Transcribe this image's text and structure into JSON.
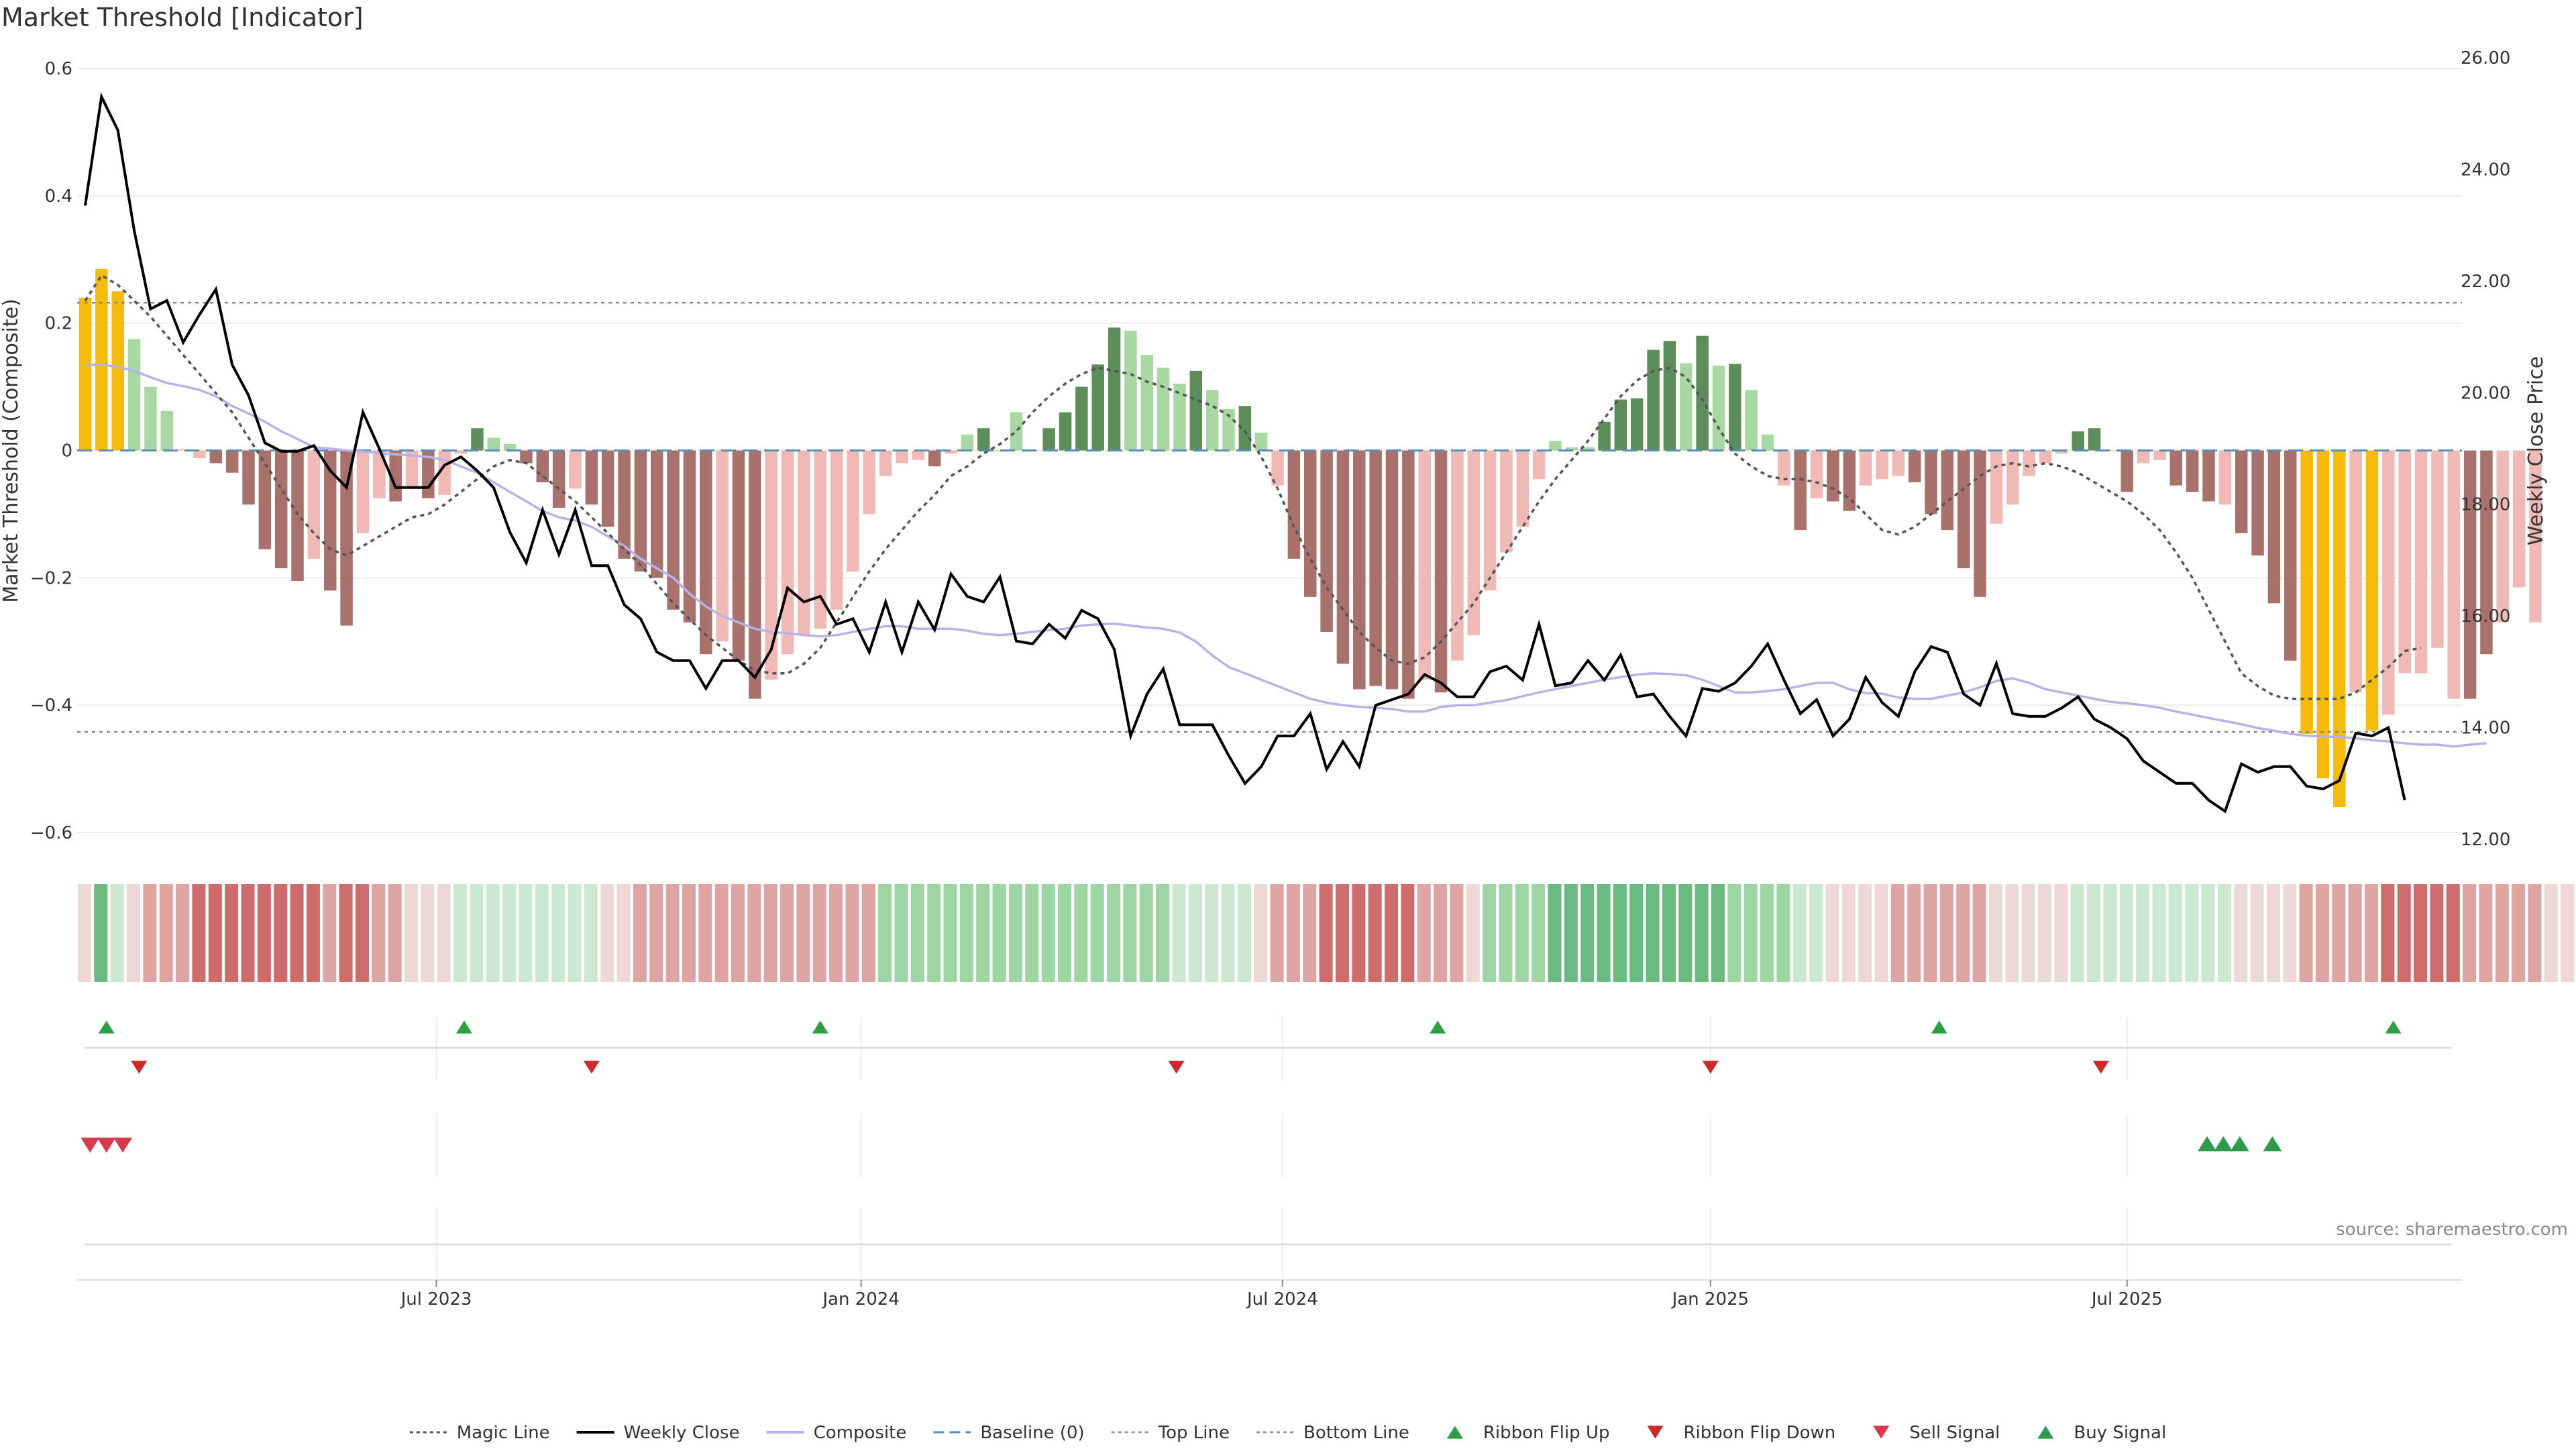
{
  "title": "Market Threshold [Indicator]",
  "source": "source: sharemaestro.com",
  "chart_data": {
    "type": "bar+line",
    "title": "Market Threshold [Indicator]",
    "y_left_label": "Market Threshold (Composite)",
    "y_right_label": "Weekly Close Price",
    "y_left_ticks": [
      "0.6",
      "0.4",
      "0.2",
      "0",
      "−0.2",
      "−0.4",
      "−0.6"
    ],
    "y_left_range": [
      -0.6,
      0.6
    ],
    "y_right_ticks": [
      "26.00",
      "24.00",
      "22.00",
      "20.00",
      "18.00",
      "16.00",
      "14.00",
      "12.00"
    ],
    "y_right_range": [
      12,
      26
    ],
    "x_ticks": [
      {
        "label": "Jul 2023",
        "week": 21.5
      },
      {
        "label": "Jan 2024",
        "week": 47.5
      },
      {
        "label": "Jul 2024",
        "week": 73.3
      },
      {
        "label": "Jan 2025",
        "week": 99.5
      },
      {
        "label": "Jul 2025",
        "week": 125.0
      }
    ],
    "top_line": 0.232,
    "bottom_line": -0.442,
    "baseline": 0,
    "composite": [
      0.24,
      0.285,
      0.25,
      0.175,
      0.1,
      0.062,
      0.002,
      -0.012,
      -0.02,
      -0.035,
      -0.085,
      -0.155,
      -0.185,
      -0.205,
      -0.17,
      -0.22,
      -0.275,
      -0.13,
      -0.075,
      -0.08,
      -0.06,
      -0.075,
      -0.07,
      -0.005,
      0.035,
      0.02,
      0.01,
      -0.02,
      -0.05,
      -0.09,
      -0.06,
      -0.085,
      -0.12,
      -0.17,
      -0.19,
      -0.2,
      -0.25,
      -0.27,
      -0.32,
      -0.3,
      -0.33,
      -0.39,
      -0.36,
      -0.32,
      -0.29,
      -0.28,
      -0.25,
      -0.19,
      -0.1,
      -0.04,
      -0.02,
      -0.015,
      -0.025,
      -0.005,
      0.025,
      0.035,
      0.0,
      0.06,
      0.0,
      0.035,
      0.06,
      0.1,
      0.135,
      0.193,
      0.188,
      0.15,
      0.13,
      0.105,
      0.125,
      0.095,
      0.065,
      0.07,
      0.028,
      -0.055,
      -0.17,
      -0.23,
      -0.285,
      -0.335,
      -0.375,
      -0.37,
      -0.375,
      -0.39,
      -0.36,
      -0.38,
      -0.33,
      -0.29,
      -0.22,
      -0.16,
      -0.12,
      -0.045,
      0.015,
      0.005,
      0.005,
      0.045,
      0.08,
      0.082,
      0.158,
      0.172,
      0.137,
      0.18,
      0.133,
      0.136,
      0.095,
      0.025,
      -0.055,
      -0.125,
      -0.075,
      -0.08,
      -0.095,
      -0.055,
      -0.045,
      -0.04,
      -0.05,
      -0.1,
      -0.125,
      -0.185,
      -0.23,
      -0.115,
      -0.085,
      -0.04,
      -0.02,
      -0.005,
      0.03,
      0.035,
      0.0,
      -0.065,
      -0.02,
      -0.015,
      -0.055,
      -0.065,
      -0.08,
      -0.085,
      -0.13,
      -0.165,
      -0.24,
      -0.33,
      -0.445,
      -0.515,
      -0.56,
      -0.38,
      -0.44,
      -0.415,
      -0.35,
      -0.35,
      -0.31,
      -0.39,
      -0.39,
      -0.32,
      -0.27,
      -0.215,
      -0.27
    ],
    "composite_colors": [
      "gold",
      "gold",
      "gold",
      "lightgreen",
      "lightgreen",
      "lightgreen",
      "lightred",
      "lightred",
      "darkred",
      "darkred",
      "darkred",
      "darkred",
      "darkred",
      "darkred",
      "lightred",
      "darkred",
      "darkred",
      "lightred",
      "lightred",
      "darkred",
      "lightred",
      "darkred",
      "lightred",
      "lightred",
      "darkgreen",
      "lightgreen",
      "lightgreen",
      "darkred",
      "darkred",
      "darkred",
      "lightred",
      "darkred",
      "darkred",
      "darkred",
      "darkred",
      "darkred",
      "darkred",
      "darkred",
      "darkred",
      "lightred",
      "darkred",
      "darkred",
      "lightred",
      "lightred",
      "lightred",
      "lightred",
      "lightred",
      "lightred",
      "lightred",
      "lightred",
      "lightred",
      "lightred",
      "darkred",
      "lightred",
      "lightgreen",
      "darkgreen",
      "lightgreen",
      "lightgreen",
      "lightgreen",
      "darkgreen",
      "darkgreen",
      "darkgreen",
      "darkgreen",
      "darkgreen",
      "lightgreen",
      "lightgreen",
      "lightgreen",
      "lightgreen",
      "darkgreen",
      "lightgreen",
      "lightgreen",
      "darkgreen",
      "lightgreen",
      "lightred",
      "darkred",
      "darkred",
      "darkred",
      "darkred",
      "darkred",
      "darkred",
      "darkred",
      "darkred",
      "lightred",
      "darkred",
      "lightred",
      "lightred",
      "lightred",
      "lightred",
      "lightred",
      "lightred",
      "lightgreen",
      "lightgreen",
      "lightgreen",
      "darkgreen",
      "darkgreen",
      "darkgreen",
      "darkgreen",
      "darkgreen",
      "lightgreen",
      "darkgreen",
      "lightgreen",
      "darkgreen",
      "lightgreen",
      "lightgreen",
      "lightred",
      "darkred",
      "lightred",
      "darkred",
      "darkred",
      "lightred",
      "lightred",
      "lightred",
      "darkred",
      "darkred",
      "darkred",
      "darkred",
      "darkred",
      "lightred",
      "lightred",
      "lightred",
      "lightred",
      "lightred",
      "darkgreen",
      "darkgreen",
      "lightred",
      "darkred",
      "lightred",
      "lightred",
      "darkred",
      "darkred",
      "darkred",
      "lightred",
      "darkred",
      "darkred",
      "darkred",
      "darkred",
      "gold",
      "gold",
      "gold",
      "lightred",
      "gold",
      "lightred",
      "lightred",
      "lightred",
      "lightred",
      "lightred",
      "darkred",
      "darkred",
      "lightred",
      "lightred",
      "lightred",
      "darkred"
    ],
    "weekly_close": [
      23.35,
      25.3,
      24.7,
      22.9,
      21.5,
      21.65,
      20.9,
      21.4,
      21.85,
      20.5,
      19.95,
      19.1,
      18.95,
      18.95,
      19.05,
      18.6,
      18.3,
      19.65,
      19.0,
      18.3,
      18.3,
      18.3,
      18.7,
      18.85,
      18.6,
      18.3,
      17.5,
      16.95,
      17.9,
      17.1,
      17.9,
      16.9,
      16.9,
      16.2,
      15.95,
      15.35,
      15.2,
      15.2,
      14.7,
      15.2,
      15.2,
      14.9,
      15.4,
      16.5,
      16.25,
      16.35,
      15.85,
      15.95,
      15.35,
      16.25,
      15.35,
      16.25,
      15.75,
      16.75,
      16.35,
      16.25,
      16.7,
      15.55,
      15.5,
      15.85,
      15.6,
      16.1,
      15.95,
      15.4,
      13.85,
      14.6,
      15.05,
      14.05,
      14.05,
      14.05,
      13.5,
      13.0,
      13.3,
      13.85,
      13.85,
      14.25,
      13.25,
      13.75,
      13.3,
      14.4,
      14.5,
      14.6,
      14.95,
      14.8,
      14.55,
      14.55,
      15.0,
      15.1,
      14.85,
      15.85,
      14.75,
      14.8,
      15.2,
      14.85,
      15.3,
      14.55,
      14.6,
      14.2,
      13.85,
      14.7,
      14.65,
      14.8,
      15.1,
      15.5,
      14.85,
      14.25,
      14.5,
      13.85,
      14.15,
      14.9,
      14.45,
      14.2,
      15.0,
      15.45,
      15.35,
      14.6,
      14.4,
      15.15,
      14.25,
      14.2,
      14.2,
      14.35,
      14.55,
      14.15,
      14.0,
      13.8,
      13.4,
      13.2,
      13.0,
      13.0,
      12.7,
      12.5,
      13.35,
      13.2,
      13.3,
      13.3,
      12.95,
      12.9,
      13.05,
      13.9,
      13.85,
      14.0,
      12.7
    ],
    "composite_ma": [
      0.134,
      0.135,
      0.131,
      0.125,
      0.115,
      0.106,
      0.101,
      0.095,
      0.085,
      0.07,
      0.058,
      0.045,
      0.03,
      0.018,
      0.005,
      0.003,
      0.0,
      -0.002,
      -0.004,
      -0.006,
      -0.008,
      -0.01,
      -0.015,
      -0.025,
      -0.035,
      -0.05,
      -0.065,
      -0.08,
      -0.095,
      -0.105,
      -0.11,
      -0.12,
      -0.135,
      -0.15,
      -0.17,
      -0.185,
      -0.2,
      -0.225,
      -0.245,
      -0.26,
      -0.27,
      -0.28,
      -0.285,
      -0.287,
      -0.29,
      -0.292,
      -0.29,
      -0.285,
      -0.28,
      -0.276,
      -0.276,
      -0.28,
      -0.28,
      -0.28,
      -0.283,
      -0.288,
      -0.29,
      -0.288,
      -0.285,
      -0.282,
      -0.28,
      -0.275,
      -0.273,
      -0.272,
      -0.275,
      -0.278,
      -0.28,
      -0.286,
      -0.3,
      -0.322,
      -0.34,
      -0.35,
      -0.36,
      -0.37,
      -0.38,
      -0.39,
      -0.396,
      -0.4,
      -0.403,
      -0.404,
      -0.406,
      -0.41,
      -0.41,
      -0.403,
      -0.4,
      -0.4,
      -0.396,
      -0.392,
      -0.386,
      -0.38,
      -0.375,
      -0.37,
      -0.365,
      -0.36,
      -0.356,
      -0.352,
      -0.35,
      -0.351,
      -0.353,
      -0.36,
      -0.37,
      -0.38,
      -0.38,
      -0.378,
      -0.375,
      -0.37,
      -0.365,
      -0.365,
      -0.375,
      -0.381,
      -0.382,
      -0.388,
      -0.39,
      -0.39,
      -0.385,
      -0.38,
      -0.372,
      -0.362,
      -0.358,
      -0.365,
      -0.375,
      -0.38,
      -0.385,
      -0.39,
      -0.395,
      -0.397,
      -0.4,
      -0.404,
      -0.41,
      -0.415,
      -0.42,
      -0.425,
      -0.43,
      -0.436,
      -0.44,
      -0.445,
      -0.448,
      -0.449,
      -0.45,
      -0.452,
      -0.455,
      -0.457,
      -0.46,
      -0.462,
      -0.462,
      -0.465,
      -0.462,
      -0.46
    ],
    "magic_line": [
      0.235,
      0.275,
      0.26,
      0.235,
      0.21,
      0.18,
      0.15,
      0.12,
      0.09,
      0.06,
      0.02,
      -0.02,
      -0.06,
      -0.1,
      -0.13,
      -0.155,
      -0.165,
      -0.15,
      -0.135,
      -0.12,
      -0.105,
      -0.1,
      -0.085,
      -0.065,
      -0.045,
      -0.025,
      -0.015,
      -0.02,
      -0.04,
      -0.06,
      -0.08,
      -0.105,
      -0.13,
      -0.155,
      -0.18,
      -0.21,
      -0.24,
      -0.265,
      -0.29,
      -0.31,
      -0.33,
      -0.345,
      -0.35,
      -0.35,
      -0.335,
      -0.31,
      -0.27,
      -0.23,
      -0.19,
      -0.155,
      -0.125,
      -0.095,
      -0.07,
      -0.04,
      -0.025,
      -0.005,
      0.01,
      0.03,
      0.06,
      0.085,
      0.105,
      0.12,
      0.13,
      0.125,
      0.12,
      0.108,
      0.1,
      0.09,
      0.08,
      0.07,
      0.055,
      0.03,
      -0.01,
      -0.06,
      -0.12,
      -0.17,
      -0.215,
      -0.25,
      -0.285,
      -0.31,
      -0.33,
      -0.335,
      -0.325,
      -0.3,
      -0.27,
      -0.24,
      -0.2,
      -0.16,
      -0.12,
      -0.08,
      -0.045,
      -0.015,
      0.015,
      0.05,
      0.085,
      0.11,
      0.125,
      0.13,
      0.115,
      0.08,
      0.035,
      -0.005,
      -0.025,
      -0.04,
      -0.045,
      -0.045,
      -0.05,
      -0.06,
      -0.075,
      -0.1,
      -0.125,
      -0.132,
      -0.12,
      -0.1,
      -0.08,
      -0.06,
      -0.04,
      -0.025,
      -0.02,
      -0.025,
      -0.02,
      -0.025,
      -0.035,
      -0.05,
      -0.065,
      -0.08,
      -0.1,
      -0.125,
      -0.16,
      -0.2,
      -0.25,
      -0.3,
      -0.35,
      -0.37,
      -0.385,
      -0.39,
      -0.39,
      -0.39,
      -0.39,
      -0.38,
      -0.36,
      -0.34,
      -0.315,
      -0.31
    ],
    "ribbon_colors": [
      "r1",
      "g3",
      "g1",
      "r1",
      "r2",
      "r2",
      "r2",
      "r3",
      "r3",
      "r3",
      "r3",
      "r3",
      "r3",
      "r3",
      "r3",
      "r2",
      "r3",
      "r3",
      "r2",
      "r2",
      "r1",
      "r1",
      "r1",
      "g1",
      "g1",
      "g1",
      "g1",
      "g1",
      "g1",
      "g1",
      "g1",
      "g1",
      "r1",
      "r1",
      "r2",
      "r2",
      "r2",
      "r2",
      "r2",
      "r2",
      "r2",
      "r2",
      "r2",
      "r2",
      "r2",
      "r2",
      "r2",
      "r2",
      "r2",
      "g2",
      "g2",
      "g2",
      "g2",
      "g2",
      "g2",
      "g2",
      "g2",
      "g2",
      "g2",
      "g2",
      "g2",
      "g2",
      "g2",
      "g2",
      "g2",
      "g2",
      "g2",
      "g1",
      "g1",
      "g1",
      "g1",
      "g1",
      "r1",
      "r2",
      "r2",
      "r2",
      "r3",
      "r3",
      "r3",
      "r3",
      "r3",
      "r3",
      "r2",
      "r2",
      "r2",
      "r1",
      "g2",
      "g2",
      "g2",
      "g2",
      "g3",
      "g3",
      "g3",
      "g3",
      "g3",
      "g3",
      "g3",
      "g3",
      "g3",
      "g3",
      "g3",
      "g2",
      "g2",
      "g2",
      "g2",
      "g1",
      "g1",
      "r1",
      "r1",
      "r1",
      "r1",
      "r2",
      "r2",
      "r2",
      "r2",
      "r2",
      "r2",
      "r1",
      "r1",
      "r1",
      "r1",
      "r1",
      "g1",
      "g1",
      "g1",
      "g1",
      "g1",
      "g1",
      "g1",
      "g1",
      "g1",
      "g1",
      "r1",
      "r1",
      "r1",
      "r1",
      "r2",
      "r2",
      "r2",
      "r2",
      "r2",
      "r3",
      "r3",
      "r3",
      "r3",
      "r3",
      "r2",
      "r2",
      "r2",
      "r2",
      "r2",
      "r1",
      "r1",
      "r1",
      "g1",
      "g1"
    ],
    "ribbon_flip_up_weeks": [
      1.3,
      23.2,
      45.0,
      82.8,
      113.5,
      141.3
    ],
    "ribbon_flip_down_weeks": [
      3.3,
      31.0,
      66.8,
      99.5,
      123.4
    ],
    "sell_signal_weeks": [
      0.3,
      1.3,
      2.3
    ],
    "buy_signal_weeks": [
      129.9,
      130.9,
      131.9,
      133.9
    ],
    "legend": [
      {
        "label": "Magic Line",
        "kind": "dotted-line",
        "color": "#555555"
      },
      {
        "label": "Weekly Close",
        "kind": "line",
        "color": "#000000"
      },
      {
        "label": "Composite",
        "kind": "line",
        "color": "#b8b2e6"
      },
      {
        "label": "Baseline (0)",
        "kind": "dashed-line",
        "color": "#5b8db8"
      },
      {
        "label": "Top Line",
        "kind": "dotted-line",
        "color": "#999999"
      },
      {
        "label": "Bottom Line",
        "kind": "dotted-line",
        "color": "#999999"
      },
      {
        "label": "Ribbon Flip Up",
        "kind": "triangle-up",
        "color": "#2ea043"
      },
      {
        "label": "Ribbon Flip Down",
        "kind": "triangle-down",
        "color": "#cc2a2a"
      },
      {
        "label": "Sell Signal",
        "kind": "triangle-down",
        "color": "#d63a4a"
      },
      {
        "label": "Buy Signal",
        "kind": "triangle-up",
        "color": "#2e9a4a"
      }
    ],
    "colors": {
      "gold": "#f5bb0a",
      "lightgreen": "#a9d7a1",
      "darkgreen": "#5e8d5c",
      "lightred": "#efbab5",
      "darkred": "#a8716c",
      "r1": "#eed7d7",
      "r2": "#dea4a2",
      "r3": "#cd6c6a",
      "g1": "#cbe7cd",
      "g2": "#9ed5a4",
      "g3": "#6ab980"
    }
  }
}
